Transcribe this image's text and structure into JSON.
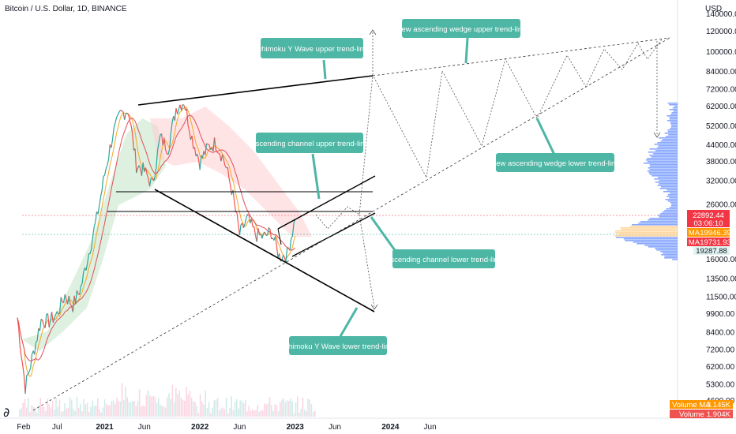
{
  "header": {
    "title": "Bitcoin / U.S. Dollar, 1D, BINANCE",
    "currency": "USD"
  },
  "colors": {
    "background": "#ffffff",
    "price_line_up": "#26a69a",
    "price_line_down": "#ef5350",
    "annotation_bg": "#4db6a4",
    "trend_line": "#000000",
    "projection": "#555555",
    "ma_fast": "#f5a623",
    "ma_slow": "#e04e5a",
    "cloud_green": "#c8e6c9",
    "cloud_red": "#ffcdd2",
    "profile_blue": "#2962ff",
    "profile_yellow": "#ffb74d",
    "price_badge": "#f23645",
    "ma_badge": "#ff9800",
    "last_badge": "#e0f2f1"
  },
  "chart_data": {
    "type": "line",
    "title": "Bitcoin / U.S. Dollar, 1D, BINANCE",
    "y_scale": "log",
    "ylim": [
      4000,
      150000
    ],
    "x_ticks": [
      "Feb",
      "Jul",
      "2021",
      "Jun",
      "2022",
      "Jun",
      "2023",
      "Jun",
      "2024",
      "Jun"
    ],
    "y_ticks": [
      140000,
      120000,
      100000,
      84000,
      72000,
      62000,
      52000,
      44000,
      38000,
      32000,
      26000,
      16000,
      13500,
      11500,
      9900,
      8400,
      7200,
      6200,
      5300,
      4600
    ],
    "y_tick_labels": [
      "140000.00",
      "120000.00",
      "100000.00",
      "84000.00",
      "72000.00",
      "62000.00",
      "52000.00",
      "44000.00",
      "38000.00",
      "32000.00",
      "26000.00",
      "16000.00",
      "13500.00",
      "11500.00",
      "9900.00",
      "8400.00",
      "7200.00",
      "6200.00",
      "5300.00",
      "4600.00"
    ],
    "price_labels": {
      "last": {
        "value": "22892.44",
        "countdown": "03:06:10"
      },
      "ma1": {
        "label": "MA",
        "value": "19946.39"
      },
      "ma2": {
        "label": "MA",
        "value": "19731.93"
      },
      "low": {
        "value": "19287.88"
      }
    },
    "volume": {
      "ma_label": "Volume MA",
      "ma_value": "3.145K",
      "label": "Volume",
      "value": "1.904K"
    },
    "price_series": [
      [
        "2020-02",
        9600
      ],
      [
        "2020-03",
        5200
      ],
      [
        "2020-04",
        7000
      ],
      [
        "2020-05",
        9400
      ],
      [
        "2020-06",
        9300
      ],
      [
        "2020-07",
        9900
      ],
      [
        "2020-08",
        11700
      ],
      [
        "2020-09",
        10700
      ],
      [
        "2020-10",
        12500
      ],
      [
        "2020-11",
        17000
      ],
      [
        "2020-12",
        23000
      ],
      [
        "2021-01",
        34000
      ],
      [
        "2021-02",
        48000
      ],
      [
        "2021-03",
        58000
      ],
      [
        "2021-04",
        60000
      ],
      [
        "2021-05",
        37000
      ],
      [
        "2021-06",
        35000
      ],
      [
        "2021-07",
        31000
      ],
      [
        "2021-08",
        47000
      ],
      [
        "2021-09",
        43000
      ],
      [
        "2021-10",
        61000
      ],
      [
        "2021-11",
        65000
      ],
      [
        "2021-12",
        47000
      ],
      [
        "2022-01",
        38000
      ],
      [
        "2022-02",
        43000
      ],
      [
        "2022-03",
        45000
      ],
      [
        "2022-04",
        39000
      ],
      [
        "2022-05",
        30000
      ],
      [
        "2022-06",
        20000
      ],
      [
        "2022-07",
        23000
      ],
      [
        "2022-08",
        20000
      ],
      [
        "2022-09",
        19500
      ],
      [
        "2022-10",
        20500
      ],
      [
        "2022-11",
        16500
      ],
      [
        "2022-12",
        16800
      ],
      [
        "2023-01",
        22800
      ]
    ],
    "annotations": [
      "Ichimoku Y Wave upper trend-line",
      "New ascending wedge upper trend-line",
      "Ascending channel upper trend-line",
      "New ascending wedge lower trend-line",
      "Ascending channel lower trend-line",
      "Ichimoku Y Wave lower trend-line"
    ]
  }
}
